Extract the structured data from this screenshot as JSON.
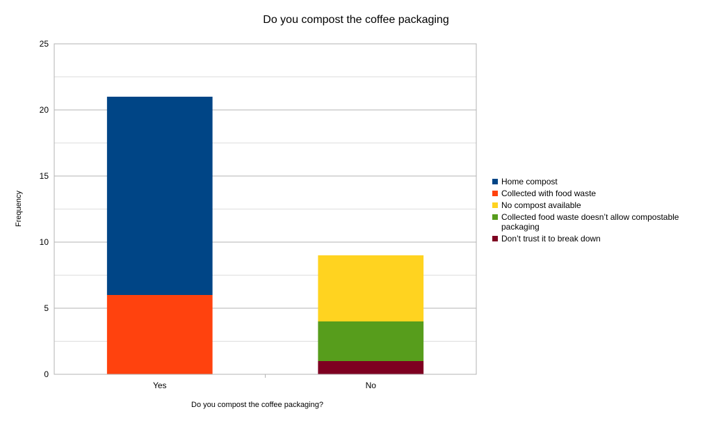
{
  "chart_data": {
    "type": "bar",
    "stacked": true,
    "title": "Do you compost the coffee packaging",
    "xlabel": "Do you compost the coffee packaging?",
    "ylabel": "Frequency",
    "ylim": [
      0,
      25
    ],
    "yticks": [
      0,
      5,
      10,
      15,
      20,
      25
    ],
    "grid": true,
    "legend_position": "right",
    "categories": [
      "Yes",
      "No"
    ],
    "series": [
      {
        "name": "Home compost",
        "color": "#004586",
        "values": [
          15,
          0
        ]
      },
      {
        "name": "Collected with food waste",
        "color": "#ff420e",
        "values": [
          6,
          0
        ]
      },
      {
        "name": "No compost available",
        "color": "#ffd320",
        "values": [
          0,
          5
        ]
      },
      {
        "name": "Collected food waste doesn’t allow compostable packaging",
        "color": "#579d1c",
        "values": [
          0,
          3
        ]
      },
      {
        "name": "Don’t trust it to break down",
        "color": "#7e0021",
        "values": [
          0,
          1
        ]
      }
    ]
  }
}
